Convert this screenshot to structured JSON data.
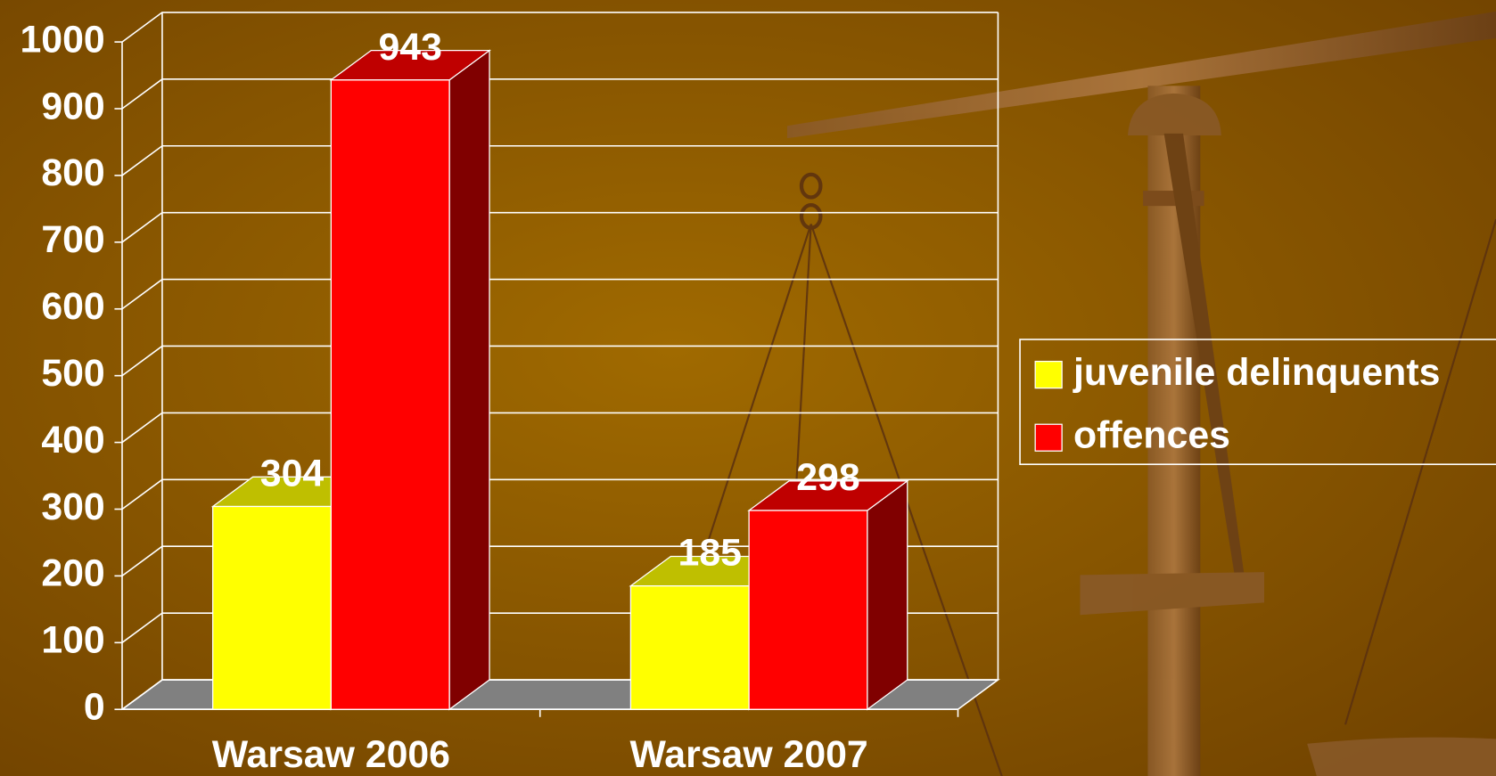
{
  "chart_data": {
    "type": "bar3d",
    "categories": [
      "Warsaw 2006",
      "Warsaw 2007"
    ],
    "series": [
      {
        "name": "juvenile delinquents",
        "color": "#ffff00",
        "values": [
          304,
          185
        ]
      },
      {
        "name": "offences",
        "color": "#ff0000",
        "values": [
          943,
          298
        ]
      }
    ],
    "ylim": [
      0,
      1000
    ],
    "yticks": [
      0,
      100,
      200,
      300,
      400,
      500,
      600,
      700,
      800,
      900,
      1000
    ],
    "grid": true,
    "legend": "right"
  }
}
